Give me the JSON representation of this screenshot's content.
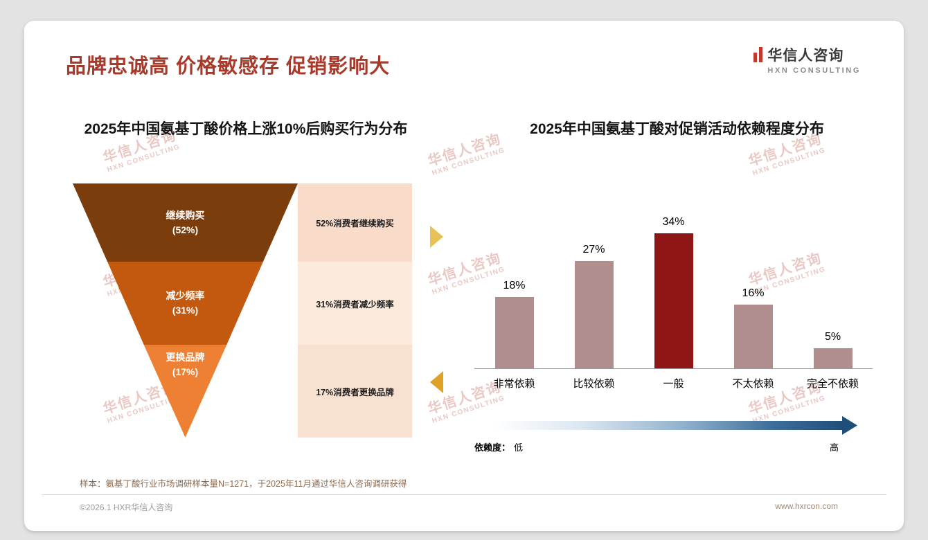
{
  "slide": {
    "title": "品牌忠诚高 价格敏感存 促销影响大",
    "footnote": "样本：氨基丁酸行业市场调研样本量N=1271，于2025年11月通过华信人咨询调研获得",
    "footer_left": "©2026.1 HXR华信人咨询",
    "footer_right": "www.hxrcon.com"
  },
  "logo": {
    "cn": "华信人咨询",
    "en": "HXN CONSULTING"
  },
  "watermark": {
    "cn": "华信人咨询",
    "en": "HXN CONSULTING"
  },
  "colors": {
    "title_red": "#A83A2B",
    "arrow_gold": "#E9C257",
    "arrow_amber": "#DFA126",
    "gradient_blue": "#1F4E79"
  },
  "chart_data": [
    {
      "type": "funnel",
      "title": "2025年中国氨基丁酸价格上涨10%后购买行为分布",
      "stages": [
        {
          "label": "继续购买",
          "pct": "(52%)",
          "value": 52,
          "annotation": "52%消费者继续购买",
          "color": "#7C3D0D",
          "annotation_bg": "#F8DCC9"
        },
        {
          "label": "减少频率",
          "pct": "(31%)",
          "value": 31,
          "annotation": "31%消费者减少频率",
          "color": "#C2590F",
          "annotation_bg": "#FCEADC"
        },
        {
          "label": "更换品牌",
          "pct": "(17%)",
          "value": 17,
          "annotation": "17%消费者更换品牌",
          "color": "#EE8033",
          "annotation_bg": "#F9E1D1"
        }
      ]
    },
    {
      "type": "bar",
      "title": "2025年中国氨基丁酸对促销活动依赖程度分布",
      "categories": [
        "非常依赖",
        "比较依赖",
        "一般",
        "不太依赖",
        "完全不依赖"
      ],
      "values": [
        18,
        27,
        34,
        16,
        5
      ],
      "value_labels": [
        "18%",
        "27%",
        "34%",
        "16%",
        "5%"
      ],
      "highlight_index": 2,
      "bar_color": "#B18E8E",
      "highlight_color": "#8E1616",
      "ylim": [
        0,
        40
      ],
      "grid": false,
      "legend_position": "none",
      "dependency_axis": {
        "label": "依赖度：",
        "low": "低",
        "high": "高"
      }
    }
  ]
}
